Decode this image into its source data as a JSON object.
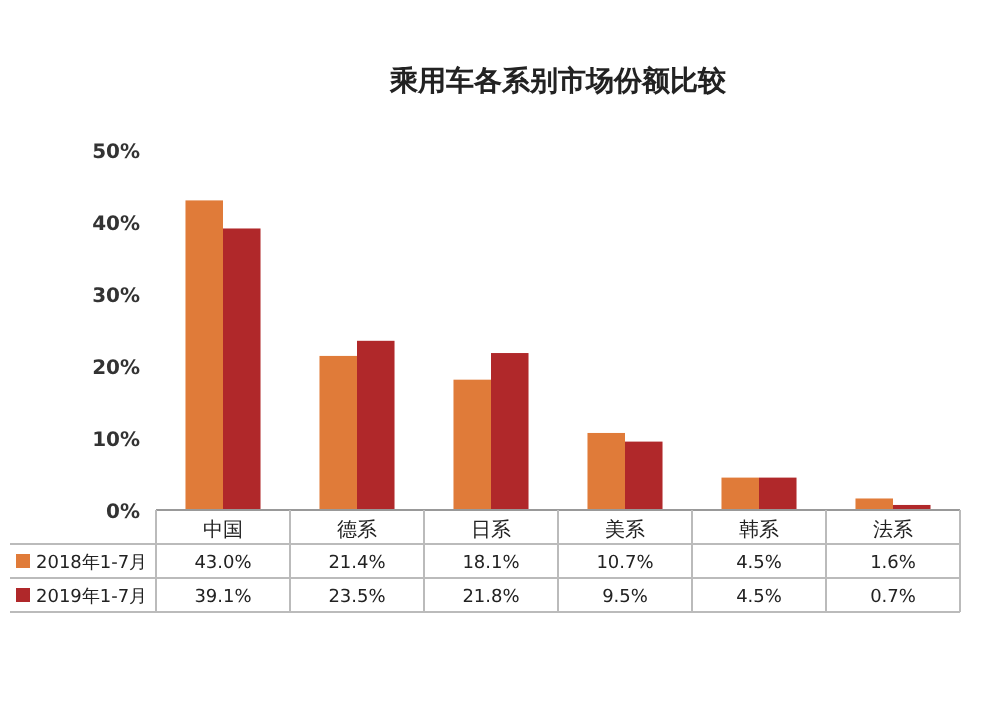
{
  "chart_data": {
    "type": "bar",
    "title": "乘用车各系别市场份额比较",
    "categories": [
      "中国",
      "德系",
      "日系",
      "美系",
      "韩系",
      "法系"
    ],
    "series": [
      {
        "name": "2018年1-7月",
        "color": "#e07b39",
        "values": [
          43.0,
          21.4,
          18.1,
          10.7,
          4.5,
          1.6
        ],
        "value_labels": [
          "43.0%",
          "21.4%",
          "18.1%",
          "10.7%",
          "4.5%",
          "1.6%"
        ]
      },
      {
        "name": "2019年1-7月",
        "color": "#b0282a",
        "values": [
          39.1,
          23.5,
          21.8,
          9.5,
          4.5,
          0.7
        ],
        "value_labels": [
          "39.1%",
          "23.5%",
          "21.8%",
          "9.5%",
          "4.5%",
          "0.7%"
        ]
      }
    ],
    "ylim": [
      0,
      50
    ],
    "yticks": [
      {
        "value": 0,
        "label": "0%"
      },
      {
        "value": 10,
        "label": "10%"
      },
      {
        "value": 20,
        "label": "20%"
      },
      {
        "value": 30,
        "label": "30%"
      },
      {
        "value": 40,
        "label": "40%"
      },
      {
        "value": 50,
        "label": "50%"
      }
    ],
    "legend": "bottom",
    "grid": false
  }
}
